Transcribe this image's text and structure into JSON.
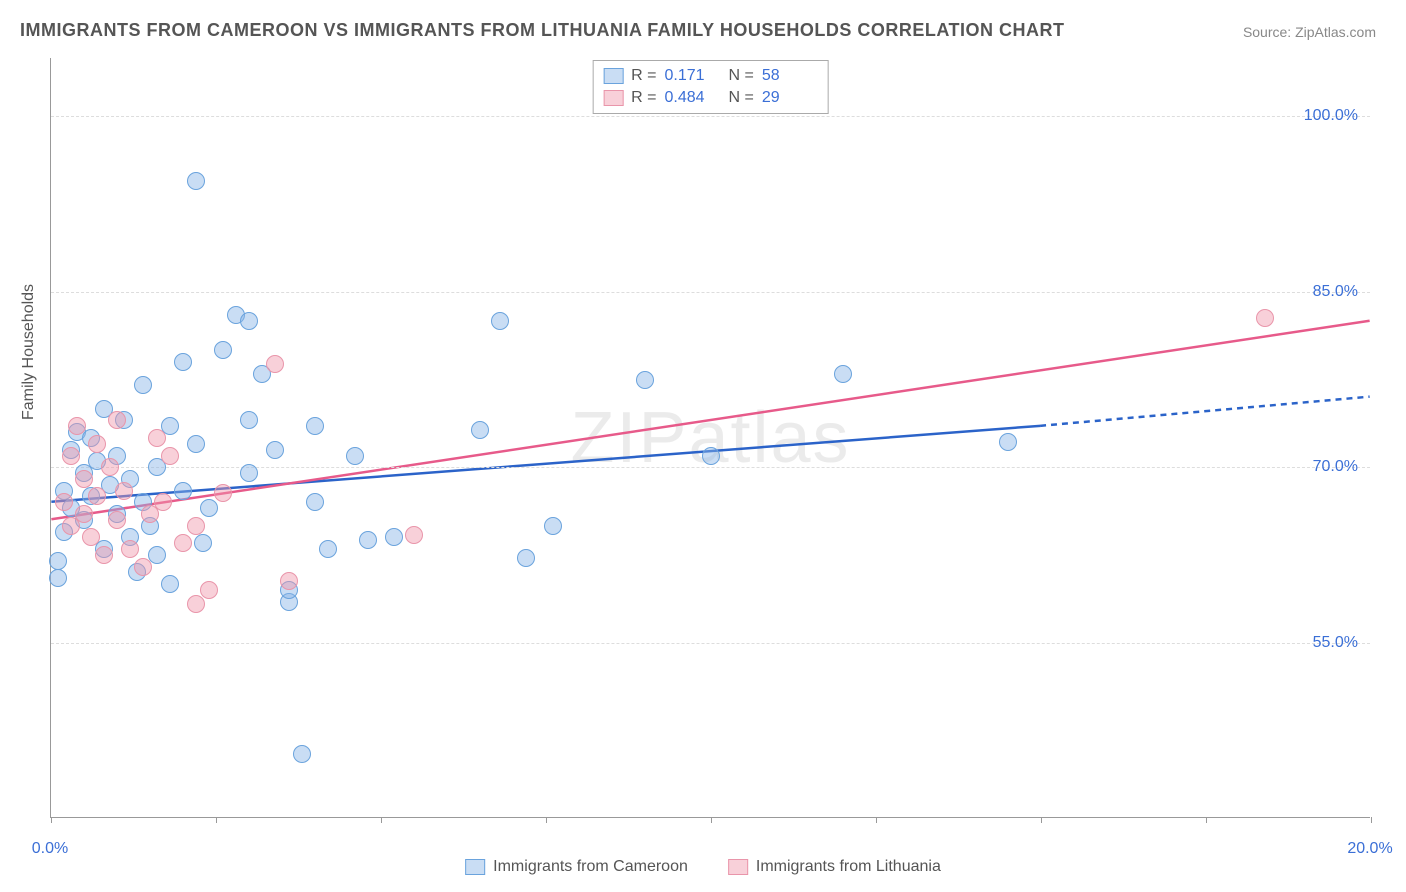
{
  "title": "IMMIGRANTS FROM CAMEROON VS IMMIGRANTS FROM LITHUANIA FAMILY HOUSEHOLDS CORRELATION CHART",
  "source": "Source: ZipAtlas.com",
  "ylabel": "Family Households",
  "watermark": "ZIPatlas",
  "chart": {
    "type": "scatter",
    "xlim": [
      0,
      20
    ],
    "ylim": [
      40,
      105
    ],
    "xtick_positions": [
      0,
      2.5,
      5,
      7.5,
      10,
      12.5,
      15,
      17.5,
      20
    ],
    "xtick_labels": {
      "0": "0.0%",
      "20": "20.0%"
    },
    "ytick_positions": [
      55,
      70,
      85,
      100
    ],
    "ytick_labels": [
      "55.0%",
      "70.0%",
      "85.0%",
      "100.0%"
    ],
    "grid_color": "#dddddd",
    "background_color": "#ffffff",
    "marker_radius": 9,
    "series": [
      {
        "name": "Immigrants from Cameroon",
        "fill_color": "rgba(135, 180, 230, 0.45)",
        "stroke_color": "#6aa3dd",
        "line_color": "#2b63c9",
        "r_value": "0.171",
        "n_value": "58",
        "trend": {
          "x1": 0,
          "y1": 67,
          "x2": 15,
          "y2": 73.5,
          "dash_from_x": 15,
          "dash_to_x": 20,
          "dash_y2": 76
        },
        "points": [
          [
            0.1,
            62
          ],
          [
            0.1,
            60.5
          ],
          [
            0.2,
            68
          ],
          [
            0.2,
            64.5
          ],
          [
            0.3,
            66.5
          ],
          [
            0.3,
            71.5
          ],
          [
            0.4,
            73
          ],
          [
            0.5,
            65.5
          ],
          [
            0.5,
            69.5
          ],
          [
            0.6,
            67.5
          ],
          [
            0.6,
            72.5
          ],
          [
            0.7,
            70.5
          ],
          [
            0.8,
            63
          ],
          [
            0.8,
            75
          ],
          [
            0.9,
            68.5
          ],
          [
            1.0,
            66
          ],
          [
            1.0,
            71
          ],
          [
            1.1,
            74
          ],
          [
            1.2,
            64
          ],
          [
            1.2,
            69
          ],
          [
            1.3,
            61
          ],
          [
            1.4,
            77
          ],
          [
            1.4,
            67
          ],
          [
            1.5,
            65
          ],
          [
            1.6,
            70
          ],
          [
            1.6,
            62.5
          ],
          [
            1.8,
            73.5
          ],
          [
            1.8,
            60
          ],
          [
            2.0,
            79
          ],
          [
            2.0,
            68
          ],
          [
            2.2,
            94.5
          ],
          [
            2.2,
            72
          ],
          [
            2.3,
            63.5
          ],
          [
            2.4,
            66.5
          ],
          [
            2.6,
            80
          ],
          [
            2.8,
            83
          ],
          [
            3.0,
            74
          ],
          [
            3.0,
            82.5
          ],
          [
            3.0,
            69.5
          ],
          [
            3.2,
            78
          ],
          [
            3.4,
            71.5
          ],
          [
            3.6,
            58.5
          ],
          [
            3.6,
            59.5
          ],
          [
            3.8,
            45.5
          ],
          [
            4.0,
            73.5
          ],
          [
            4.0,
            67
          ],
          [
            4.2,
            63
          ],
          [
            4.6,
            71
          ],
          [
            4.8,
            63.8
          ],
          [
            5.2,
            64
          ],
          [
            6.5,
            73.2
          ],
          [
            6.8,
            82.5
          ],
          [
            7.2,
            62.2
          ],
          [
            7.6,
            65
          ],
          [
            9.0,
            77.5
          ],
          [
            10.0,
            71
          ],
          [
            12.0,
            78
          ],
          [
            14.5,
            72.2
          ]
        ]
      },
      {
        "name": "Immigrants from Lithuania",
        "fill_color": "rgba(240, 150, 170, 0.45)",
        "stroke_color": "#e995aa",
        "line_color": "#e75a8a",
        "r_value": "0.484",
        "n_value": "29",
        "trend": {
          "x1": 0,
          "y1": 65.5,
          "x2": 20,
          "y2": 82.5
        },
        "points": [
          [
            0.2,
            67
          ],
          [
            0.3,
            65
          ],
          [
            0.3,
            71
          ],
          [
            0.4,
            73.5
          ],
          [
            0.5,
            66
          ],
          [
            0.5,
            69
          ],
          [
            0.6,
            64
          ],
          [
            0.7,
            72
          ],
          [
            0.7,
            67.5
          ],
          [
            0.8,
            62.5
          ],
          [
            0.9,
            70
          ],
          [
            1.0,
            74
          ],
          [
            1.0,
            65.5
          ],
          [
            1.1,
            68
          ],
          [
            1.2,
            63
          ],
          [
            1.4,
            61.5
          ],
          [
            1.5,
            66
          ],
          [
            1.6,
            72.5
          ],
          [
            1.7,
            67
          ],
          [
            1.8,
            71
          ],
          [
            2.0,
            63.5
          ],
          [
            2.2,
            65
          ],
          [
            2.4,
            59.5
          ],
          [
            2.2,
            58.3
          ],
          [
            2.6,
            67.8
          ],
          [
            3.4,
            78.8
          ],
          [
            3.6,
            60.3
          ],
          [
            5.5,
            64.2
          ],
          [
            18.4,
            82.8
          ]
        ]
      }
    ]
  },
  "bottom_legend": [
    {
      "label": "Immigrants from Cameroon",
      "fill": "rgba(135, 180, 230, 0.45)",
      "stroke": "#6aa3dd"
    },
    {
      "label": "Immigrants from Lithuania",
      "fill": "rgba(240, 150, 170, 0.45)",
      "stroke": "#e995aa"
    }
  ]
}
